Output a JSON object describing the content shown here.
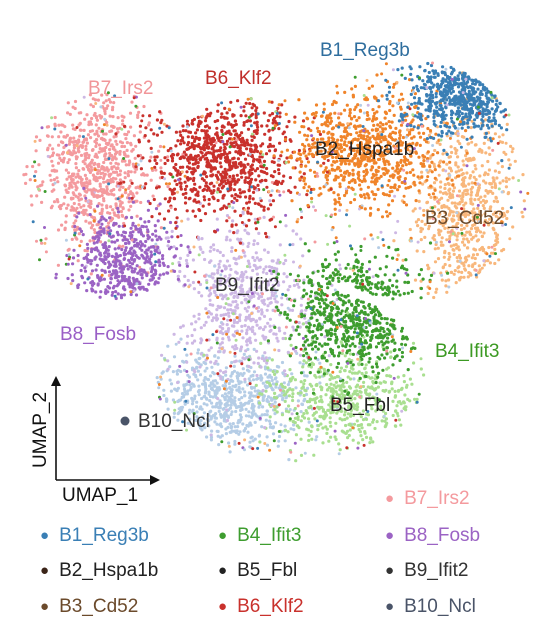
{
  "chart_data": {
    "type": "scatter",
    "xlabel": "UMAP_1",
    "ylabel": "UMAP_2",
    "grid": false,
    "legend_placement": "bottom",
    "clusters": [
      {
        "id": "B1",
        "name": "B1_Reg3b",
        "color": "#3a7fb5",
        "label_color": "#2f6e9e"
      },
      {
        "id": "B2",
        "name": "B2_Hspa1b",
        "color": "#f0842a",
        "label_color": "#222222"
      },
      {
        "id": "B3",
        "name": "B3_Cd52",
        "color": "#f8b77c",
        "label_color": "#6b4a2b"
      },
      {
        "id": "B4",
        "name": "B4_Ifit3",
        "color": "#3e9d2f",
        "label_color": "#3c9a23"
      },
      {
        "id": "B5",
        "name": "B5_Fbl",
        "color": "#a9df90",
        "label_color": "#222222"
      },
      {
        "id": "B6",
        "name": "B6_Klf2",
        "color": "#c9312c",
        "label_color": "#c02e2a"
      },
      {
        "id": "B7",
        "name": "B7_Irs2",
        "color": "#f49a9e",
        "label_color": "#f19699"
      },
      {
        "id": "B8",
        "name": "B8_Fosb",
        "color": "#9b63c4",
        "label_color": "#9a5fc6"
      },
      {
        "id": "B9",
        "name": "B9_Ifit2",
        "color": "#cdb8e4",
        "label_color": "#333333"
      },
      {
        "id": "B10",
        "name": "B10_Ncl",
        "color": "#b5cde6",
        "label_color": "#333333",
        "marker_color": "#4a5468"
      }
    ]
  },
  "legend": {
    "items": [
      {
        "label": "B7_Irs2",
        "dot_color": "#f49a9e",
        "text_color": "#f49a9e"
      },
      {
        "label": "B1_Reg3b",
        "dot_color": "#3a7fb5",
        "text_color": "#3a7fb5"
      },
      {
        "label": "B4_Ifit3",
        "dot_color": "#3e9d2f",
        "text_color": "#3e9d2f"
      },
      {
        "label": "B8_Fosb",
        "dot_color": "#9b63c4",
        "text_color": "#9b63c4"
      },
      {
        "label": "B2_Hspa1b",
        "dot_color": "#3b2418",
        "text_color": "#222222"
      },
      {
        "label": "B5_Fbl",
        "dot_color": "#222222",
        "text_color": "#222222"
      },
      {
        "label": "B9_Ifit2",
        "dot_color": "#333333",
        "text_color": "#333333"
      },
      {
        "label": "B3_Cd52",
        "dot_color": "#6b4a2b",
        "text_color": "#6b4a2b"
      },
      {
        "label": "B6_Klf2",
        "dot_color": "#c9312c",
        "text_color": "#c9312c"
      },
      {
        "label": "B10_Ncl",
        "dot_color": "#4a5468",
        "text_color": "#4a5468"
      }
    ]
  }
}
